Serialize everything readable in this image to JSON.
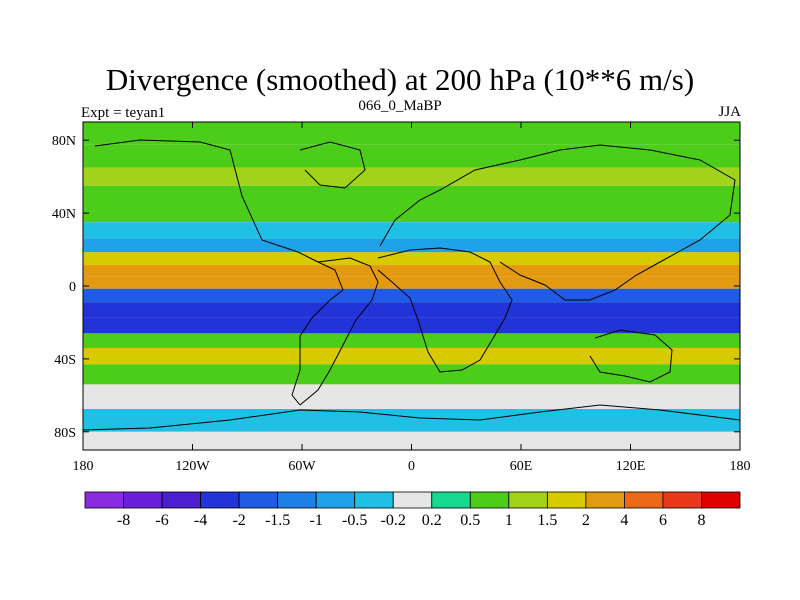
{
  "chart_data": {
    "type": "heatmap",
    "title": "Divergence (smoothed) at 200 hPa (10**6 m/s)",
    "left_label": "Expt = teyan1",
    "center_label": "066_0_MaBP",
    "right_label": "JJA",
    "xlim": [
      -180,
      180
    ],
    "ylim": [
      -90,
      90
    ],
    "x_ticks": [
      {
        "value": -180,
        "label": "180"
      },
      {
        "value": -120,
        "label": "120W"
      },
      {
        "value": -60,
        "label": "60W"
      },
      {
        "value": 0,
        "label": "0"
      },
      {
        "value": 60,
        "label": "60E"
      },
      {
        "value": 120,
        "label": "120E"
      },
      {
        "value": 180,
        "label": "180"
      }
    ],
    "y_ticks": [
      {
        "value": 80,
        "label": "80N"
      },
      {
        "value": 40,
        "label": "40N"
      },
      {
        "value": 0,
        "label": "0"
      },
      {
        "value": -40,
        "label": "40S"
      },
      {
        "value": -80,
        "label": "80S"
      }
    ],
    "colorbar": {
      "labels": [
        "-8",
        "-6",
        "-4",
        "-2",
        "-1.5",
        "-1",
        "-0.5",
        "-0.2",
        "0.2",
        "0.5",
        "1",
        "1.5",
        "2",
        "4",
        "6",
        "8"
      ],
      "colors": [
        "#8a2be2",
        "#6a20d8",
        "#4b1fd0",
        "#2233d8",
        "#1f5be3",
        "#1e7fe6",
        "#1fa2ea",
        "#20c0e4",
        "#e6e6e6",
        "#16d890",
        "#4ccd1a",
        "#a3d21a",
        "#d8ca00",
        "#e39a10",
        "#ec6a17",
        "#e83a1a",
        "#e00000"
      ]
    },
    "bands": [
      {
        "lat": 85,
        "value": 0.6
      },
      {
        "lat": 70,
        "value": 0.9
      },
      {
        "lat": 60,
        "value": 1.4
      },
      {
        "lat": 50,
        "value": 0.8
      },
      {
        "lat": 40,
        "value": 0.7
      },
      {
        "lat": 30,
        "value": -0.4
      },
      {
        "lat": 22,
        "value": -0.9
      },
      {
        "lat": 15,
        "value": 1.5
      },
      {
        "lat": 8,
        "value": 3.0
      },
      {
        "lat": 2,
        "value": 2.0
      },
      {
        "lat": -5,
        "value": -1.8
      },
      {
        "lat": -13,
        "value": -3.5
      },
      {
        "lat": -22,
        "value": -3.0
      },
      {
        "lat": -30,
        "value": 0.6
      },
      {
        "lat": -38,
        "value": 1.6
      },
      {
        "lat": -48,
        "value": 0.9
      },
      {
        "lat": -60,
        "value": 0.0
      },
      {
        "lat": -75,
        "value": -0.5
      },
      {
        "lat": -85,
        "value": 0.0
      }
    ]
  }
}
